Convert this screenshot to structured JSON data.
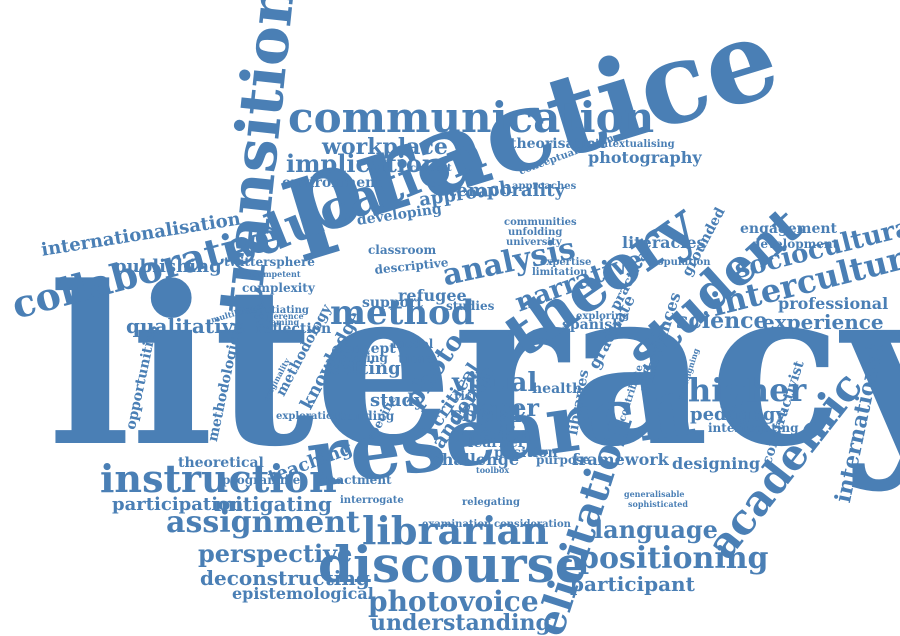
{
  "color": "#4a7fb5",
  "words": [
    "literacy",
    "practice",
    "research",
    "transition",
    "theory",
    "communication",
    "education",
    "discourse",
    "librarian",
    "student",
    "method",
    "analysis",
    "instruction",
    "assignment",
    "academic",
    "higher",
    "intercultural",
    "sociocultural",
    "elicitation",
    "positioning",
    "collaborative",
    "internationalisation",
    "photovoice",
    "narrative",
    "science",
    "experience",
    "language",
    "perspective",
    "deconstructing",
    "understanding",
    "participant",
    "visual",
    "paper",
    "social",
    "media",
    "qualitative",
    "publishing",
    "implication",
    "workplace",
    "approach",
    "temporality",
    "photography",
    "theorisation",
    "literacies",
    "engagement",
    "development",
    "professional",
    "international",
    "pedagogy",
    "framework",
    "designing",
    "mitigating",
    "participation",
    "theoretical",
    "epistemological",
    "knowledge",
    "methodology",
    "methodological",
    "opportunities",
    "reflection",
    "teaching",
    "photo",
    "critical",
    "pandemic",
    "challenge",
    "position",
    "learner",
    "purpose",
    "setting",
    "study",
    "environment",
    "developing",
    "twittersphere",
    "complexity",
    "refugee",
    "support",
    "spanish",
    "affordances",
    "graduate",
    "health",
    "risk",
    "concept",
    "enactment",
    "peeling",
    "time",
    "programme",
    "examination",
    "consideration",
    "interrogate",
    "relegating",
    "contextualising",
    "conceptualisation",
    "communities",
    "unfolding",
    "university",
    "context",
    "classroom",
    "descriptive",
    "grounded",
    "population",
    "expertise",
    "limitation",
    "practical",
    "exploring",
    "constructivist",
    "interrogating",
    "exploration",
    "building",
    "specific",
    "libraries",
    "negotiating",
    "incompetent",
    "reframing",
    "multilingual",
    "conference",
    "originality",
    "model",
    "studies",
    "approaches",
    "generalisable",
    "sophisticated",
    "toolbox",
    "redesigning",
    "contribute"
  ]
}
